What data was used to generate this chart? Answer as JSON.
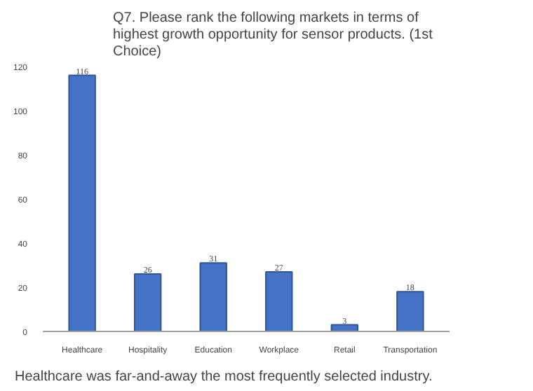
{
  "chart_data": {
    "type": "bar",
    "title": "Q7. Please rank the following markets in terms of highest growth opportunity for sensor products. (1st Choice)",
    "categories": [
      "Healthcare",
      "Hospitality",
      "Education",
      "Workplace",
      "Retail",
      "Transportation"
    ],
    "values": [
      116,
      26,
      31,
      27,
      3,
      18
    ],
    "color": "#4472c4",
    "ylim": [
      0,
      120
    ],
    "yticks": [
      0,
      20,
      40,
      60,
      80,
      100,
      120
    ],
    "grid": false,
    "data_labels": true,
    "annotations": [
      "Healthcare was far-and-away the most frequently selected industry."
    ]
  }
}
